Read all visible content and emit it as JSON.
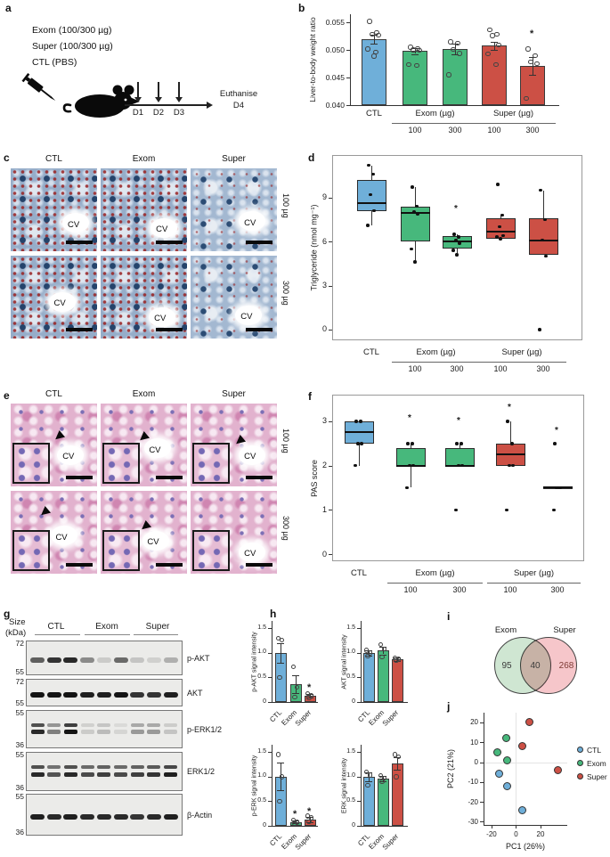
{
  "palette": {
    "blue": "#6fafd9",
    "green": "#47b87c",
    "red": "#cc5045",
    "bar_border": "#3a3a3a",
    "axis": "#333333"
  },
  "panel_labels": {
    "a": "a",
    "b": "b",
    "c": "c",
    "d": "d",
    "e": "e",
    "f": "f",
    "g": "g",
    "h": "h",
    "i": "i",
    "j": "j"
  },
  "panel_a": {
    "legend_lines": [
      "Exom (100/300 µg)",
      "Super (100/300 µg)",
      "CTL (PBS)"
    ],
    "timeline_days": [
      "D1",
      "D2",
      "D3"
    ],
    "endpoint_line1": "Euthanise",
    "endpoint_line2": "D4"
  },
  "histology_c": {
    "columns": [
      "CTL",
      "Exom",
      "Super"
    ],
    "row_labels": [
      "100 µg",
      "300 µg"
    ],
    "vein_label": "CV"
  },
  "histology_e": {
    "columns": [
      "CTL",
      "Exom",
      "Super"
    ],
    "row_labels": [
      "100 µg",
      "300 µg"
    ],
    "vein_label": "CV"
  },
  "western_g": {
    "size_label_line1": "Size",
    "size_label_line2": "(kDa)",
    "groups": [
      "CTL",
      "Exom",
      "Super"
    ],
    "rows": [
      {
        "label": "p-AKT",
        "marker_top": "72",
        "marker_bottom": "55",
        "double": false,
        "bands": [
          0.65,
          0.85,
          0.9,
          0.45,
          0.15,
          0.6,
          0.18,
          0.12,
          0.28
        ]
      },
      {
        "label": "AKT",
        "marker_top": "72",
        "marker_bottom": "55",
        "double": false,
        "bands": [
          1,
          1,
          1,
          0.95,
          0.95,
          1,
          0.85,
          0.85,
          0.95
        ]
      },
      {
        "label": "p-ERK1/2",
        "marker_top": "55",
        "marker_bottom": "36",
        "double": true,
        "bands": [
          0.9,
          0.5,
          1,
          0.15,
          0.22,
          0.1,
          0.38,
          0.38,
          0.18
        ]
      },
      {
        "label": "ERK1/2",
        "marker_top": "55",
        "marker_bottom": "36",
        "double": true,
        "bands": [
          0.9,
          0.7,
          0.9,
          0.75,
          0.8,
          0.75,
          0.8,
          0.85,
          0.95
        ]
      },
      {
        "label": "β-Actin",
        "marker_top": "55",
        "marker_bottom": "36",
        "double": false,
        "bands": [
          0.95,
          0.9,
          0.95,
          0.9,
          0.9,
          0.9,
          0.85,
          0.9,
          0.95
        ]
      }
    ]
  },
  "venn_i": {
    "left_label": "Exom",
    "right_label": "Super",
    "left_count": "95",
    "overlap_count": "40",
    "right_count": "268",
    "left_fill": "#cfe6d2",
    "right_fill": "#f6c6ca"
  },
  "chart_data": [
    {
      "id": "b",
      "type": "bar",
      "ylabel": "Liver-to-body weight ratio",
      "ylim": [
        0.04,
        0.0565
      ],
      "yticks": [
        0.04,
        0.045,
        0.05,
        0.055
      ],
      "ytick_labels": [
        "0.040",
        "0.045",
        "0.050",
        "0.055"
      ],
      "categories": [
        "CTL",
        "Exom 100",
        "Exom 300",
        "Super 100",
        "Super 300"
      ],
      "values": [
        0.052,
        0.0498,
        0.0502,
        0.0508,
        0.0471
      ],
      "errors": [
        0.0008,
        0.0005,
        0.0009,
        0.0007,
        0.0016
      ],
      "colors": [
        "blue",
        "green",
        "green",
        "red",
        "red"
      ],
      "sig": [
        "",
        "",
        "",
        "",
        "*"
      ],
      "sig_y": [
        0,
        0,
        0,
        0,
        0.0528
      ],
      "points": [
        [
          0.0552,
          0.0532,
          0.0529,
          0.0527,
          0.0502,
          0.0496,
          0.0489
        ],
        [
          0.0505,
          0.0503,
          0.05,
          0.0499,
          0.0474,
          0.0472
        ],
        [
          0.0515,
          0.0512,
          0.0501,
          0.0494,
          0.0455
        ],
        [
          0.0537,
          0.0529,
          0.0526,
          0.0509,
          0.0493,
          0.0474
        ],
        [
          0.0502,
          0.049,
          0.0478,
          0.0475,
          0.0412
        ]
      ],
      "group_axis": [
        {
          "label": "CTL",
          "cols": [
            0
          ]
        },
        {
          "label": "Exom (µg)",
          "cols": [
            1,
            2
          ],
          "subs": [
            "100",
            "300"
          ]
        },
        {
          "label": "Super (µg)",
          "cols": [
            3,
            4
          ],
          "subs": [
            "100",
            "300"
          ]
        }
      ]
    },
    {
      "id": "d",
      "type": "box",
      "ylabel": "Triglyceride (nmol mg⁻¹)",
      "ylim": [
        -0.73,
        11.9
      ],
      "yticks": [
        0,
        3,
        6,
        9
      ],
      "ytick_labels": [
        "0",
        "3",
        "6",
        "9"
      ],
      "categories": [
        "CTL",
        "Exom 100",
        "Exom 300",
        "Super 100",
        "Super 300"
      ],
      "colors": [
        "blue",
        "green",
        "green",
        "red",
        "red"
      ],
      "boxes": [
        {
          "lo": 7.1,
          "q1": 8.1,
          "med": 8.6,
          "q3": 10.2,
          "hi": 11.2,
          "points": [
            11.2,
            10.6,
            9.2,
            8.1,
            7.1
          ]
        },
        {
          "lo": 4.6,
          "q1": 6.0,
          "med": 7.95,
          "q3": 8.35,
          "hi": 9.7,
          "points": [
            9.7,
            8.4,
            8.0,
            7.9,
            5.5,
            4.6
          ]
        },
        {
          "lo": 5.0,
          "q1": 5.5,
          "med": 6.0,
          "q3": 6.4,
          "hi": 6.5,
          "sig": 8.2,
          "points": [
            6.5,
            6.3,
            6.1,
            5.9,
            5.4,
            5.1
          ]
        },
        {
          "lo": 6.2,
          "q1": 6.2,
          "med": 6.65,
          "q3": 7.6,
          "hi": 7.8,
          "points": [
            9.9,
            7.8,
            7.0,
            6.4,
            6.3,
            6.2
          ]
        },
        {
          "lo": 5.1,
          "q1": 5.1,
          "med": 6.1,
          "q3": 7.6,
          "hi": 9.5,
          "points": [
            9.5,
            7.5,
            6.1,
            5.0,
            0.0
          ]
        }
      ],
      "group_axis": [
        {
          "label": "CTL",
          "cols": [
            0
          ]
        },
        {
          "label": "Exom (µg)",
          "cols": [
            1,
            2
          ],
          "subs": [
            "100",
            "300"
          ]
        },
        {
          "label": "Super (µg)",
          "cols": [
            3,
            4
          ],
          "subs": [
            "100",
            "300"
          ]
        }
      ]
    },
    {
      "id": "f",
      "type": "box",
      "ylabel": "PAS score",
      "ylim": [
        -0.16,
        3.6
      ],
      "yticks": [
        0,
        1,
        2,
        3
      ],
      "ytick_labels": [
        "0",
        "1",
        "2",
        "3"
      ],
      "categories": [
        "CTL",
        "Exom 100",
        "Exom 300",
        "Super 100",
        "Super 300"
      ],
      "colors": [
        "blue",
        "green",
        "green",
        "red",
        "red"
      ],
      "boxes": [
        {
          "lo": 2.0,
          "q1": 2.5,
          "med": 2.75,
          "q3": 3.0,
          "hi": 3.0,
          "points": [
            3.0,
            3.0,
            2.5,
            2.5,
            2.0
          ]
        },
        {
          "lo": 1.5,
          "q1": 2.0,
          "med": 2.0,
          "q3": 2.4,
          "hi": 2.5,
          "sig": 3.05,
          "points": [
            2.5,
            2.5,
            2.0,
            2.0,
            1.5
          ]
        },
        {
          "lo": 2.0,
          "q1": 2.0,
          "med": 2.0,
          "q3": 2.4,
          "hi": 2.5,
          "sig": 3.0,
          "points": [
            2.5,
            2.5,
            2.0,
            2.0,
            1.0
          ]
        },
        {
          "lo": 2.0,
          "q1": 2.0,
          "med": 2.25,
          "q3": 2.5,
          "hi": 3.0,
          "sig": 3.3,
          "points": [
            3.0,
            2.5,
            2.0,
            2.0,
            1.0
          ]
        },
        {
          "lo": 1.5,
          "q1": 1.5,
          "med": 1.5,
          "q3": 1.5,
          "hi": 1.5,
          "sig": 2.78,
          "points": [
            2.5,
            1.5,
            1.5,
            1.5,
            1.0
          ]
        }
      ],
      "group_axis": [
        {
          "label": "CTL",
          "cols": [
            0
          ]
        },
        {
          "label": "Exom (µg)",
          "cols": [
            1,
            2
          ],
          "subs": [
            "100",
            "300"
          ]
        },
        {
          "label": "Super (µg)",
          "cols": [
            3,
            4
          ],
          "subs": [
            "100",
            "300"
          ]
        }
      ]
    },
    {
      "id": "h1",
      "type": "bar",
      "ylabel": "p-AKT signal intensity",
      "ylim": [
        0,
        1.65
      ],
      "yticks": [
        0,
        0.5,
        1.0,
        1.5
      ],
      "ytick_labels": [
        "0",
        "0.5",
        "1.0",
        "1.5"
      ],
      "categories": [
        "CTL",
        "Exom",
        "Super"
      ],
      "values": [
        1.0,
        0.37,
        0.13
      ],
      "errors": [
        0.2,
        0.18,
        0.04
      ],
      "colors": [
        "blue",
        "green",
        "red"
      ],
      "sig": [
        "",
        "",
        "*"
      ],
      "sig_y": [
        0,
        0,
        0.28
      ],
      "points": [
        [
          1.3,
          1.26,
          0.5
        ],
        [
          0.72,
          0.3,
          0.1
        ],
        [
          0.17,
          0.13,
          0.09
        ]
      ],
      "rotate_xticks": true
    },
    {
      "id": "h2",
      "type": "bar",
      "ylabel": "AKT signal intensity",
      "ylim": [
        0,
        1.65
      ],
      "yticks": [
        0,
        0.5,
        1.0,
        1.5
      ],
      "ytick_labels": [
        "0",
        "0.5",
        "1.0",
        "1.5"
      ],
      "categories": [
        "CTL",
        "Exom",
        "Super"
      ],
      "values": [
        1.0,
        1.05,
        0.87
      ],
      "errors": [
        0.05,
        0.08,
        0.03
      ],
      "colors": [
        "blue",
        "green",
        "red"
      ],
      "sig": [
        "",
        "",
        ""
      ],
      "sig_y": [
        0,
        0,
        0
      ],
      "points": [
        [
          1.05,
          1.0,
          0.93
        ],
        [
          1.17,
          1.08,
          0.92
        ],
        [
          0.9,
          0.87,
          0.85
        ]
      ],
      "rotate_xticks": true
    },
    {
      "id": "h3",
      "type": "bar",
      "ylabel": "p-ERK signal intensity",
      "ylim": [
        0,
        1.65
      ],
      "yticks": [
        0,
        0.5,
        1.0,
        1.5
      ],
      "ytick_labels": [
        "0",
        "0.5",
        "1.0",
        "1.5"
      ],
      "categories": [
        "CTL",
        "Exom",
        "Super"
      ],
      "values": [
        1.0,
        0.08,
        0.13
      ],
      "errors": [
        0.28,
        0.03,
        0.05
      ],
      "colors": [
        "blue",
        "green",
        "red"
      ],
      "sig": [
        "",
        "*",
        "*"
      ],
      "sig_y": [
        0,
        0.22,
        0.28
      ],
      "points": [
        [
          1.45,
          1.0,
          0.5
        ],
        [
          0.12,
          0.07,
          0.05
        ],
        [
          0.2,
          0.16,
          0.08
        ]
      ],
      "rotate_xticks": true
    },
    {
      "id": "h4",
      "type": "bar",
      "ylabel": "ERK signal intensity",
      "ylim": [
        0,
        1.65
      ],
      "yticks": [
        0,
        0.5,
        1.0,
        1.5
      ],
      "ytick_labels": [
        "0",
        "0.5",
        "1.0",
        "1.5"
      ],
      "categories": [
        "CTL",
        "Exom",
        "Super"
      ],
      "values": [
        1.0,
        0.96,
        1.27
      ],
      "errors": [
        0.09,
        0.05,
        0.13
      ],
      "colors": [
        "blue",
        "green",
        "red"
      ],
      "sig": [
        "",
        "",
        ""
      ],
      "sig_y": [
        0,
        0,
        0
      ],
      "points": [
        [
          1.1,
          1.03,
          0.82
        ],
        [
          1.02,
          0.97,
          0.9
        ],
        [
          1.45,
          1.4,
          1.0
        ]
      ],
      "rotate_xticks": true
    },
    {
      "id": "j",
      "type": "scatter",
      "xlabel": "PC1 (26%)",
      "ylabel": "PC2 (21%)",
      "xlim": [
        -26.5,
        41.8
      ],
      "ylim": [
        -31.6,
        24.9
      ],
      "xticks": [
        -20,
        0,
        20
      ],
      "xtick_labels": [
        "-20",
        "0",
        "20"
      ],
      "yticks": [
        20,
        10,
        0,
        -10,
        -20,
        -30
      ],
      "ytick_labels": [
        "20",
        "10",
        "0",
        "-10",
        "-20",
        "-30"
      ],
      "series": [
        {
          "name": "CTL",
          "color": "blue",
          "points": [
            [
              -14,
              -6
            ],
            [
              -7,
              -12
            ],
            [
              5,
              -24
            ]
          ]
        },
        {
          "name": "Exom",
          "color": "green",
          "points": [
            [
              -15,
              5
            ],
            [
              -8,
              12
            ],
            [
              -7,
              1
            ]
          ]
        },
        {
          "name": "Super",
          "color": "red",
          "points": [
            [
              11,
              20
            ],
            [
              5,
              8
            ],
            [
              34,
              -4
            ]
          ]
        }
      ]
    }
  ]
}
